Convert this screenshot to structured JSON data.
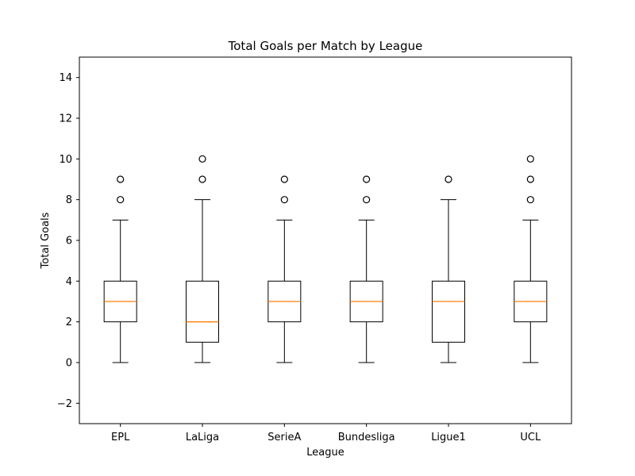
{
  "chart_data": {
    "type": "box",
    "title": "Total Goals per Match by League",
    "xlabel": "League",
    "ylabel": "Total Goals",
    "ylim": [
      -3,
      15
    ],
    "yticks": [
      -2,
      0,
      2,
      4,
      6,
      8,
      10,
      12,
      14
    ],
    "categories": [
      "EPL",
      "LaLiga",
      "SerieA",
      "Bundesliga",
      "Ligue1",
      "UCL"
    ],
    "boxes": [
      {
        "category": "EPL",
        "whisker_low": 0,
        "q1": 2,
        "median": 3,
        "q3": 4,
        "whisker_high": 7,
        "outliers": [
          8,
          9
        ]
      },
      {
        "category": "LaLiga",
        "whisker_low": 0,
        "q1": 1,
        "median": 2,
        "q3": 4,
        "whisker_high": 8,
        "outliers": [
          9,
          10
        ]
      },
      {
        "category": "SerieA",
        "whisker_low": 0,
        "q1": 2,
        "median": 3,
        "q3": 4,
        "whisker_high": 7,
        "outliers": [
          8,
          9
        ]
      },
      {
        "category": "Bundesliga",
        "whisker_low": 0,
        "q1": 2,
        "median": 3,
        "q3": 4,
        "whisker_high": 7,
        "outliers": [
          8,
          9
        ]
      },
      {
        "category": "Ligue1",
        "whisker_low": 0,
        "q1": 1,
        "median": 3,
        "q3": 4,
        "whisker_high": 8,
        "outliers": [
          9
        ]
      },
      {
        "category": "UCL",
        "whisker_low": 0,
        "q1": 2,
        "median": 3,
        "q3": 4,
        "whisker_high": 7,
        "outliers": [
          8,
          9,
          10
        ]
      }
    ],
    "grid": false,
    "colors": {
      "box": "#000000",
      "median": "#ff7f0e",
      "outlier_edge": "#000000"
    }
  }
}
